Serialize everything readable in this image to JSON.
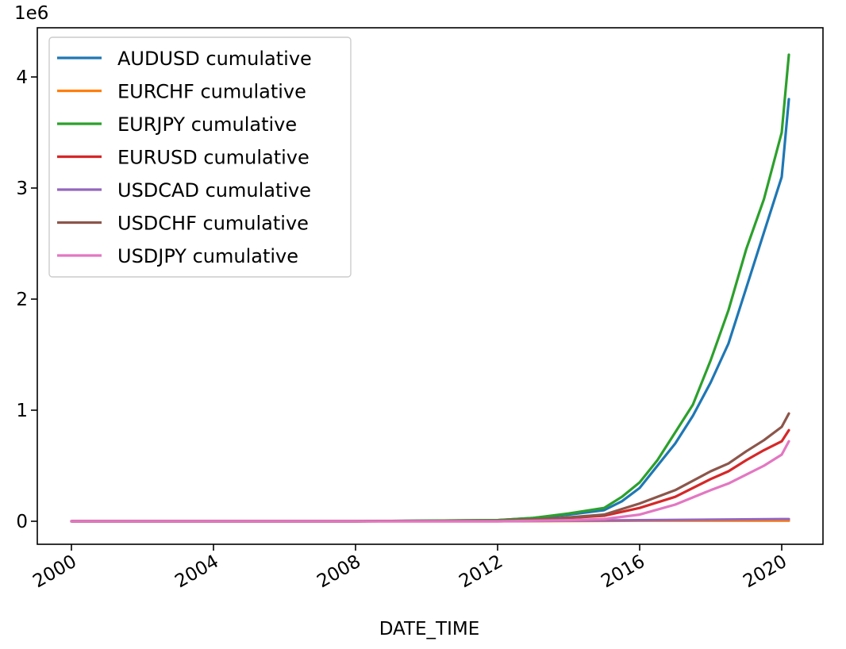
{
  "chart_data": {
    "type": "line",
    "xlabel": "DATE_TIME",
    "ylabel": "",
    "y_offset_label": "1e6",
    "xlim": [
      2000,
      2021.0
    ],
    "ylim": [
      -0.21,
      4.5
    ],
    "x_ticks": [
      2000,
      2004,
      2008,
      2012,
      2016,
      2020
    ],
    "x_tick_labels": [
      "2000",
      "2004",
      "2008",
      "2012",
      "2016",
      "2020"
    ],
    "y_ticks": [
      0,
      1,
      2,
      3,
      4
    ],
    "y_tick_labels": [
      "0",
      "1",
      "2",
      "3",
      "4"
    ],
    "grid": false,
    "legend_position": "upper-left",
    "series": [
      {
        "name": "AUDUSD cumulative",
        "color": "#1f77b4",
        "x": [
          2000,
          2004,
          2008,
          2012,
          2013,
          2014,
          2015,
          2015.5,
          2016,
          2016.5,
          2017,
          2017.5,
          2018,
          2018.5,
          2019,
          2019.5,
          2020,
          2020.2
        ],
        "y": [
          0.0,
          0.0,
          0.0,
          0.01,
          0.03,
          0.06,
          0.1,
          0.18,
          0.3,
          0.5,
          0.7,
          0.95,
          1.25,
          1.6,
          2.1,
          2.6,
          3.1,
          3.8
        ]
      },
      {
        "name": "EURCHF cumulative",
        "color": "#ff7f0e",
        "x": [
          2000,
          2004,
          2008,
          2012,
          2016,
          2020,
          2020.2
        ],
        "y": [
          0.0,
          0.0,
          0.0,
          0.0,
          0.005,
          0.005,
          0.005
        ]
      },
      {
        "name": "EURJPY cumulative",
        "color": "#2ca02c",
        "x": [
          2000,
          2004,
          2008,
          2012,
          2013,
          2014,
          2015,
          2015.5,
          2016,
          2016.5,
          2017,
          2017.5,
          2018,
          2018.5,
          2019,
          2019.5,
          2020,
          2020.2
        ],
        "y": [
          0.0,
          0.0,
          0.0,
          0.01,
          0.03,
          0.07,
          0.12,
          0.22,
          0.35,
          0.55,
          0.8,
          1.05,
          1.45,
          1.9,
          2.45,
          2.9,
          3.5,
          4.2
        ]
      },
      {
        "name": "EURUSD cumulative",
        "color": "#d62728",
        "x": [
          2000,
          2004,
          2008,
          2012,
          2013,
          2014,
          2015,
          2016,
          2017,
          2018,
          2018.5,
          2019,
          2019.5,
          2020,
          2020.2
        ],
        "y": [
          0.0,
          0.0,
          0.0,
          0.005,
          0.015,
          0.03,
          0.05,
          0.12,
          0.22,
          0.38,
          0.45,
          0.55,
          0.64,
          0.72,
          0.82
        ]
      },
      {
        "name": "USDCAD cumulative",
        "color": "#9467bd",
        "x": [
          2000,
          2004,
          2008,
          2012,
          2016,
          2020,
          2020.2
        ],
        "y": [
          0.0,
          0.0,
          0.0,
          0.0,
          0.01,
          0.02,
          0.02
        ]
      },
      {
        "name": "USDCHF cumulative",
        "color": "#8c564b",
        "x": [
          2000,
          2004,
          2008,
          2012,
          2013,
          2014,
          2015,
          2016,
          2017,
          2018,
          2018.5,
          2019,
          2019.5,
          2020,
          2020.2
        ],
        "y": [
          0.0,
          0.0,
          0.0,
          0.005,
          0.015,
          0.035,
          0.06,
          0.16,
          0.28,
          0.45,
          0.52,
          0.63,
          0.73,
          0.85,
          0.97
        ]
      },
      {
        "name": "USDJPY cumulative",
        "color": "#e377c2",
        "x": [
          2000,
          2004,
          2008,
          2012,
          2013,
          2014,
          2015,
          2016,
          2017,
          2018,
          2018.5,
          2019,
          2019.5,
          2020,
          2020.2
        ],
        "y": [
          0.0,
          0.0,
          0.0,
          0.0,
          0.005,
          0.01,
          0.02,
          0.06,
          0.15,
          0.28,
          0.34,
          0.42,
          0.5,
          0.6,
          0.72
        ]
      }
    ]
  }
}
